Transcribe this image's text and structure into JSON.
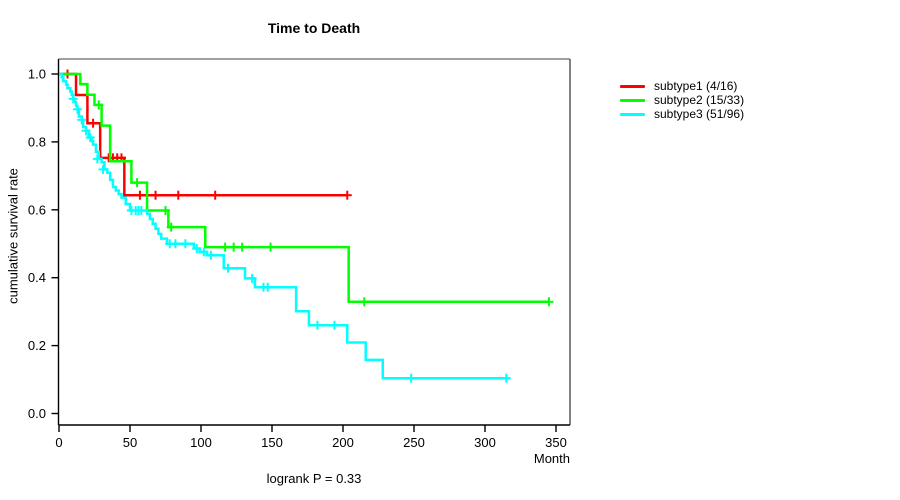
{
  "figure": {
    "title": "Time to Death",
    "x_axis_unit": "Month",
    "y_axis_label": "cumulative survival rate",
    "footnote": "logrank P = 0.33"
  },
  "legend": {
    "items": [
      {
        "label": "subtype1 (4/16)",
        "color": "#FF0000"
      },
      {
        "label": "subtype2 (15/33)",
        "color": "#00FF00"
      },
      {
        "label": "subtype3 (51/96)",
        "color": "#00FFFF"
      }
    ]
  },
  "chart_data": {
    "type": "line",
    "chart_kind": "kaplan-meier-step",
    "title": "Time to Death",
    "xlabel": "Month",
    "ylabel": "cumulative survival rate",
    "annotation": "logrank P = 0.33",
    "x_ticks": [
      0,
      50,
      100,
      150,
      200,
      250,
      300,
      350
    ],
    "y_ticks": [
      0.0,
      0.2,
      0.4,
      0.6,
      0.8,
      1.0
    ],
    "xlim": [
      0,
      360
    ],
    "ylim": [
      0,
      1.06
    ],
    "grid": false,
    "legend_position": "right-outside",
    "series": [
      {
        "name": "subtype1",
        "legend_label": "subtype1 (4/16)",
        "events": 4,
        "n": 16,
        "color": "#FF0000",
        "steps": [
          [
            0,
            1.0
          ],
          [
            12,
            0.938
          ],
          [
            20,
            0.855
          ],
          [
            29,
            0.753
          ],
          [
            46,
            0.643
          ]
        ],
        "censors": [
          [
            6,
            1.0
          ],
          [
            24,
            0.855
          ],
          [
            35,
            0.753
          ],
          [
            38,
            0.753
          ],
          [
            41,
            0.753
          ],
          [
            44,
            0.753
          ],
          [
            57,
            0.643
          ],
          [
            68,
            0.643
          ],
          [
            84,
            0.643
          ],
          [
            110,
            0.643
          ],
          [
            203,
            0.643
          ]
        ],
        "end": 203
      },
      {
        "name": "subtype2",
        "legend_label": "subtype2 (15/33)",
        "events": 15,
        "n": 33,
        "color": "#00FF00",
        "steps": [
          [
            0,
            1.0
          ],
          [
            15,
            0.97
          ],
          [
            20,
            0.939
          ],
          [
            25,
            0.909
          ],
          [
            30,
            0.848
          ],
          [
            36,
            0.743
          ],
          [
            51,
            0.68
          ],
          [
            62,
            0.598
          ],
          [
            77,
            0.549
          ],
          [
            103,
            0.49
          ],
          [
            204,
            0.329
          ]
        ],
        "censors": [
          [
            28,
            0.909
          ],
          [
            55,
            0.68
          ],
          [
            75,
            0.598
          ],
          [
            79,
            0.549
          ],
          [
            117,
            0.49
          ],
          [
            123,
            0.49
          ],
          [
            129,
            0.49
          ],
          [
            149,
            0.49
          ],
          [
            215,
            0.329
          ],
          [
            345,
            0.329
          ]
        ],
        "end": 345
      },
      {
        "name": "subtype3",
        "legend_label": "subtype3 (51/96)",
        "events": 51,
        "n": 96,
        "color": "#00FFFF",
        "steps": [
          [
            0,
            1.0
          ],
          [
            2,
            0.99
          ],
          [
            3,
            0.979
          ],
          [
            5,
            0.969
          ],
          [
            6,
            0.958
          ],
          [
            8,
            0.948
          ],
          [
            9,
            0.938
          ],
          [
            10,
            0.927
          ],
          [
            11,
            0.917
          ],
          [
            12,
            0.906
          ],
          [
            13,
            0.896
          ],
          [
            14,
            0.875
          ],
          [
            16,
            0.865
          ],
          [
            17,
            0.844
          ],
          [
            19,
            0.833
          ],
          [
            21,
            0.813
          ],
          [
            23,
            0.802
          ],
          [
            24,
            0.792
          ],
          [
            26,
            0.771
          ],
          [
            28,
            0.75
          ],
          [
            30,
            0.74
          ],
          [
            32,
            0.719
          ],
          [
            34,
            0.709
          ],
          [
            36,
            0.688
          ],
          [
            38,
            0.667
          ],
          [
            40,
            0.657
          ],
          [
            42,
            0.646
          ],
          [
            44,
            0.636
          ],
          [
            47,
            0.617
          ],
          [
            50,
            0.598
          ],
          [
            62,
            0.588
          ],
          [
            64,
            0.573
          ],
          [
            66,
            0.559
          ],
          [
            68,
            0.544
          ],
          [
            70,
            0.529
          ],
          [
            72,
            0.515
          ],
          [
            76,
            0.5
          ],
          [
            95,
            0.486
          ],
          [
            99,
            0.476
          ],
          [
            104,
            0.466
          ],
          [
            116,
            0.428
          ],
          [
            131,
            0.398
          ],
          [
            138,
            0.372
          ],
          [
            167,
            0.301
          ],
          [
            176,
            0.26
          ],
          [
            203,
            0.209
          ],
          [
            216,
            0.158
          ],
          [
            228,
            0.104
          ]
        ],
        "censors": [
          [
            10,
            0.927
          ],
          [
            13,
            0.896
          ],
          [
            16,
            0.865
          ],
          [
            19,
            0.833
          ],
          [
            22,
            0.813
          ],
          [
            27,
            0.75
          ],
          [
            31,
            0.719
          ],
          [
            51,
            0.598
          ],
          [
            54,
            0.598
          ],
          [
            56,
            0.598
          ],
          [
            58,
            0.598
          ],
          [
            78,
            0.5
          ],
          [
            82,
            0.5
          ],
          [
            89,
            0.5
          ],
          [
            97,
            0.486
          ],
          [
            102,
            0.476
          ],
          [
            107,
            0.466
          ],
          [
            119,
            0.428
          ],
          [
            136,
            0.398
          ],
          [
            144,
            0.372
          ],
          [
            147,
            0.372
          ],
          [
            182,
            0.26
          ],
          [
            194,
            0.26
          ],
          [
            248,
            0.104
          ],
          [
            315,
            0.104
          ]
        ],
        "end": 316
      }
    ]
  }
}
